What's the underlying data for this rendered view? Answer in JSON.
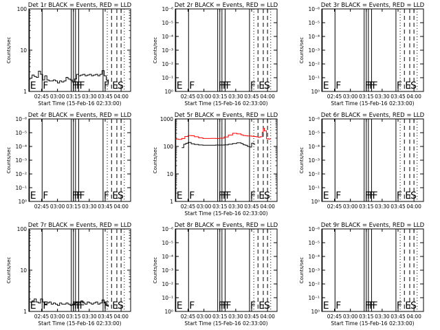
{
  "chart_data": [
    {
      "type": "line",
      "title": "Det 1r BLACK = Events, RED = LLD",
      "ylabel": "Counts/sec",
      "xlabel": "Start Time (15-Feb-16 02:33:00)",
      "log": true,
      "ylim": [
        1,
        100
      ],
      "yticks": [
        "1",
        "10",
        "100"
      ],
      "xticks": [
        "02:45",
        "03:00",
        "03:15",
        "03:30",
        "03:45",
        "04:00"
      ],
      "xlim_minutes": [
        0,
        96
      ],
      "tick_minutes": [
        12,
        27,
        42,
        57,
        72,
        87
      ],
      "events_solid": [
        {
          "label": "E",
          "x": 0.5
        },
        {
          "label": "F",
          "x": 12.5
        },
        {
          "label": "F",
          "x": 40
        },
        {
          "label": "F",
          "x": 42
        },
        {
          "label": "F",
          "x": 44
        },
        {
          "label": "F",
          "x": 47
        },
        {
          "label": "F",
          "x": 70
        }
      ],
      "events_dashed": [
        {
          "label": "E",
          "x": 78
        },
        {
          "label": "S",
          "x": 83
        },
        {
          "label": "",
          "x": 87
        }
      ],
      "events_dotted": [
        {
          "label": "",
          "x": 74
        },
        {
          "label": "",
          "x": 90
        }
      ],
      "series": [
        {
          "color": "#000000",
          "x": [
            1,
            3,
            5,
            7,
            9,
            11,
            13,
            15,
            17,
            19,
            21,
            23,
            25,
            27,
            29,
            31,
            33,
            35,
            37,
            39,
            41,
            43,
            45,
            47,
            49,
            51,
            53,
            55,
            57,
            59,
            61,
            63,
            65,
            67,
            69,
            71,
            73,
            75
          ],
          "values": [
            2.1,
            2.5,
            2.3,
            2.2,
            3.1,
            2.6,
            1.9,
            2.4,
            1.9,
            1.8,
            1.8,
            1.9,
            1.8,
            1.6,
            1.8,
            1.7,
            1.8,
            2.2,
            2.0,
            1.9,
            1.7,
            2.0,
            2.6,
            2.4,
            2.5,
            2.6,
            2.4,
            2.5,
            2.6,
            2.4,
            2.5,
            2.6,
            2.4,
            2.6,
            3.2,
            2.4,
            1.9,
            1.5
          ]
        }
      ]
    },
    {
      "type": "line",
      "title": "Det 2r BLACK = Events, RED = LLD",
      "ylabel": "Counts/sec",
      "xlabel": "Start Time (15-Feb-16 02:33:00)",
      "log": true,
      "ylim": [
        1,
        1e-06
      ],
      "yticks": [
        "10⁰",
        "10⁻¹",
        "10⁻²",
        "10⁻³",
        "10⁻⁴",
        "10⁻⁵",
        "10⁻⁶"
      ],
      "xticks": [
        "02:45",
        "03:00",
        "03:15",
        "03:30",
        "03:45",
        "04:00"
      ],
      "xlim_minutes": [
        0,
        96
      ],
      "tick_minutes": [
        12,
        27,
        42,
        57,
        72,
        87
      ],
      "events_solid": [
        {
          "label": "E",
          "x": 0.5
        },
        {
          "label": "F",
          "x": 12.5
        },
        {
          "label": "F",
          "x": 40
        },
        {
          "label": "F",
          "x": 42
        },
        {
          "label": "F",
          "x": 44
        },
        {
          "label": "F",
          "x": 47
        },
        {
          "label": "F",
          "x": 70
        }
      ],
      "events_dashed": [
        {
          "label": "E",
          "x": 78
        },
        {
          "label": "S",
          "x": 83
        },
        {
          "label": "",
          "x": 87
        }
      ],
      "events_dotted": [
        {
          "label": "",
          "x": 74
        },
        {
          "label": "",
          "x": 90
        }
      ],
      "series": []
    },
    {
      "type": "line",
      "title": "Det 3r BLACK = Events, RED = LLD",
      "ylabel": "Counts/sec",
      "xlabel": "Start Time (15-Feb-16 02:33:00)",
      "log": true,
      "ylim": [
        1,
        1e-06
      ],
      "yticks": [
        "10⁰",
        "10⁻¹",
        "10⁻²",
        "10⁻³",
        "10⁻⁴",
        "10⁻⁵",
        "10⁻⁶"
      ],
      "xticks": [
        "02:45",
        "03:00",
        "03:15",
        "03:30",
        "03:45",
        "04:00"
      ],
      "xlim_minutes": [
        0,
        96
      ],
      "tick_minutes": [
        12,
        27,
        42,
        57,
        72,
        87
      ],
      "events_solid": [
        {
          "label": "E",
          "x": 0.5
        },
        {
          "label": "F",
          "x": 12.5
        },
        {
          "label": "F",
          "x": 40
        },
        {
          "label": "F",
          "x": 42
        },
        {
          "label": "F",
          "x": 44
        },
        {
          "label": "F",
          "x": 47
        },
        {
          "label": "F",
          "x": 70
        }
      ],
      "events_dashed": [
        {
          "label": "E",
          "x": 78
        },
        {
          "label": "S",
          "x": 83
        },
        {
          "label": "",
          "x": 87
        }
      ],
      "events_dotted": [
        {
          "label": "",
          "x": 74
        },
        {
          "label": "",
          "x": 90
        }
      ],
      "series": []
    },
    {
      "type": "line",
      "title": "Det 4r BLACK = Events, RED = LLD",
      "ylabel": "Counts/sec",
      "xlabel": "",
      "log": true,
      "ylim": [
        1,
        1e-06
      ],
      "yticks": [
        "10⁰",
        "10⁻¹",
        "10⁻²",
        "10⁻³",
        "10⁻⁴",
        "10⁻⁵",
        "10⁻⁶"
      ],
      "xticks": [
        "02:45",
        "03:00",
        "03:15",
        "03:30",
        "03:45",
        "04:00"
      ],
      "xlim_minutes": [
        0,
        96
      ],
      "tick_minutes": [
        12,
        27,
        42,
        57,
        72,
        87
      ],
      "events_solid": [
        {
          "label": "E",
          "x": 0.5
        },
        {
          "label": "F",
          "x": 12.5
        },
        {
          "label": "F",
          "x": 40
        },
        {
          "label": "F",
          "x": 42
        },
        {
          "label": "F",
          "x": 44
        },
        {
          "label": "F",
          "x": 47
        },
        {
          "label": "F",
          "x": 70
        }
      ],
      "events_dashed": [
        {
          "label": "E",
          "x": 78
        },
        {
          "label": "S",
          "x": 83
        },
        {
          "label": "",
          "x": 87
        }
      ],
      "events_dotted": [
        {
          "label": "",
          "x": 74
        },
        {
          "label": "",
          "x": 90
        }
      ],
      "series": []
    },
    {
      "type": "line",
      "title": "Det 5r BLACK = Events, RED = LLD",
      "ylabel": "Counts/sec",
      "xlabel": "Start Time (15-Feb-16 02:33:00)",
      "log": true,
      "ylim": [
        1,
        1000
      ],
      "yticks": [
        "1",
        "10",
        "100",
        "1000"
      ],
      "xticks": [
        "02:45",
        "03:00",
        "03:15",
        "03:30",
        "03:45",
        "04:00"
      ],
      "xlim_minutes": [
        0,
        96
      ],
      "tick_minutes": [
        12,
        27,
        42,
        57,
        72,
        87
      ],
      "events_solid": [
        {
          "label": "E",
          "x": 0.5
        },
        {
          "label": "F",
          "x": 12.5
        },
        {
          "label": "F",
          "x": 40
        },
        {
          "label": "F",
          "x": 42
        },
        {
          "label": "F",
          "x": 44
        },
        {
          "label": "F",
          "x": 47
        },
        {
          "label": "F",
          "x": 70
        }
      ],
      "events_dashed": [
        {
          "label": "E",
          "x": 78
        },
        {
          "label": "S",
          "x": 83
        },
        {
          "label": "",
          "x": 87
        }
      ],
      "events_dotted": [
        {
          "label": "",
          "x": 74
        },
        {
          "label": "",
          "x": 90
        }
      ],
      "series": [
        {
          "color": "#000000",
          "x": [
            6,
            8,
            10,
            12,
            15,
            18,
            22,
            26,
            30,
            34,
            38,
            42,
            46,
            50,
            54,
            58,
            62,
            64,
            66,
            68,
            70,
            72,
            74,
            75
          ],
          "values": [
            90,
            120,
            130,
            140,
            125,
            118,
            113,
            110,
            110,
            110,
            112,
            112,
            114,
            120,
            128,
            136,
            128,
            115,
            110,
            100,
            95,
            132,
            120,
            125
          ]
        },
        {
          "color": "#ff0000",
          "x": [
            0,
            3,
            6,
            9,
            12,
            15,
            18,
            22,
            26,
            30,
            34,
            38,
            42,
            46,
            50,
            54,
            58,
            62,
            64,
            66,
            68,
            70,
            72,
            74,
            76,
            78,
            80,
            82,
            83,
            84,
            86,
            88,
            90
          ],
          "values": [
            185,
            180,
            195,
            230,
            250,
            245,
            225,
            205,
            195,
            195,
            196,
            195,
            200,
            220,
            260,
            300,
            285,
            265,
            250,
            245,
            240,
            240,
            235,
            230,
            225,
            215,
            225,
            330,
            460,
            370,
            190,
            185,
            185
          ]
        }
      ]
    },
    {
      "type": "line",
      "title": "Det 6r BLACK = Events, RED = LLD",
      "ylabel": "Counts/sec",
      "xlabel": "",
      "log": true,
      "ylim": [
        1,
        1e-06
      ],
      "yticks": [
        "10⁰",
        "10⁻¹",
        "10⁻²",
        "10⁻³",
        "10⁻⁴",
        "10⁻⁵",
        "10⁻⁶"
      ],
      "xticks": [
        "02:45",
        "03:00",
        "03:15",
        "03:30",
        "03:45",
        "04:00"
      ],
      "xlim_minutes": [
        0,
        96
      ],
      "tick_minutes": [
        12,
        27,
        42,
        57,
        72,
        87
      ],
      "events_solid": [
        {
          "label": "E",
          "x": 0.5
        },
        {
          "label": "F",
          "x": 12.5
        },
        {
          "label": "F",
          "x": 40
        },
        {
          "label": "F",
          "x": 42
        },
        {
          "label": "F",
          "x": 44
        },
        {
          "label": "F",
          "x": 47
        },
        {
          "label": "F",
          "x": 70
        }
      ],
      "events_dashed": [
        {
          "label": "E",
          "x": 78
        },
        {
          "label": "S",
          "x": 83
        },
        {
          "label": "",
          "x": 87
        }
      ],
      "events_dotted": [
        {
          "label": "",
          "x": 74
        },
        {
          "label": "",
          "x": 90
        }
      ],
      "series": []
    },
    {
      "type": "line",
      "title": "Det 7r BLACK = Events, RED = LLD",
      "ylabel": "Counts/sec",
      "xlabel": "Start Time (15-Feb-16 02:33:00)",
      "log": true,
      "ylim": [
        1,
        100
      ],
      "yticks": [
        "1",
        "10",
        "100"
      ],
      "xticks": [
        "02:45",
        "03:00",
        "03:15",
        "03:30",
        "03:45",
        "04:00"
      ],
      "xlim_minutes": [
        0,
        96
      ],
      "tick_minutes": [
        12,
        27,
        42,
        57,
        72,
        87
      ],
      "events_solid": [
        {
          "label": "E",
          "x": 0.5
        },
        {
          "label": "F",
          "x": 12.5
        },
        {
          "label": "F",
          "x": 40
        },
        {
          "label": "F",
          "x": 42
        },
        {
          "label": "F",
          "x": 44
        },
        {
          "label": "F",
          "x": 47
        },
        {
          "label": "F",
          "x": 70
        }
      ],
      "events_dashed": [
        {
          "label": "E",
          "x": 78
        },
        {
          "label": "S",
          "x": 83
        },
        {
          "label": "",
          "x": 87
        }
      ],
      "events_dotted": [
        {
          "label": "",
          "x": 74
        },
        {
          "label": "",
          "x": 90
        }
      ],
      "series": [
        {
          "color": "#000000",
          "x": [
            1,
            3,
            5,
            7,
            9,
            11,
            13,
            15,
            17,
            19,
            21,
            23,
            25,
            27,
            29,
            31,
            33,
            35,
            37,
            39,
            41,
            43,
            45,
            47,
            49,
            51,
            53,
            55,
            57,
            59,
            61,
            63,
            65,
            67,
            69,
            71,
            73,
            75
          ],
          "values": [
            1.7,
            1.8,
            2.0,
            1.7,
            1.6,
            2.0,
            1.7,
            1.5,
            1.6,
            1.7,
            1.5,
            1.6,
            1.5,
            1.4,
            1.6,
            1.5,
            1.5,
            1.6,
            1.5,
            1.4,
            1.5,
            1.6,
            1.7,
            1.6,
            1.8,
            1.6,
            1.5,
            1.7,
            1.6,
            1.5,
            1.6,
            1.7,
            1.5,
            1.6,
            1.9,
            1.6,
            1.4,
            1.3
          ]
        }
      ]
    },
    {
      "type": "line",
      "title": "Det 8r BLACK = Events, RED = LLD",
      "ylabel": "Counts/sec",
      "xlabel": "Start Time (15-Feb-16 02:33:00)",
      "log": true,
      "ylim": [
        1,
        1e-06
      ],
      "yticks": [
        "10⁰",
        "10⁻¹",
        "10⁻²",
        "10⁻³",
        "10⁻⁴",
        "10⁻⁵",
        "10⁻⁶"
      ],
      "xticks": [
        "02:45",
        "03:00",
        "03:15",
        "03:30",
        "03:45",
        "04:00"
      ],
      "xlim_minutes": [
        0,
        96
      ],
      "tick_minutes": [
        12,
        27,
        42,
        57,
        72,
        87
      ],
      "events_solid": [
        {
          "label": "E",
          "x": 0.5
        },
        {
          "label": "F",
          "x": 12.5
        },
        {
          "label": "F",
          "x": 40
        },
        {
          "label": "F",
          "x": 42
        },
        {
          "label": "F",
          "x": 44
        },
        {
          "label": "F",
          "x": 47
        },
        {
          "label": "F",
          "x": 70
        }
      ],
      "events_dashed": [
        {
          "label": "E",
          "x": 78
        },
        {
          "label": "S",
          "x": 83
        },
        {
          "label": "",
          "x": 87
        }
      ],
      "events_dotted": [
        {
          "label": "",
          "x": 74
        },
        {
          "label": "",
          "x": 90
        }
      ],
      "series": []
    },
    {
      "type": "line",
      "title": "Det 9r BLACK = Events, RED = LLD",
      "ylabel": "Counts/sec",
      "xlabel": "Start Time (15-Feb-16 02:33:00)",
      "log": true,
      "ylim": [
        1,
        1e-06
      ],
      "yticks": [
        "10⁰",
        "10⁻¹",
        "10⁻²",
        "10⁻³",
        "10⁻⁴",
        "10⁻⁵",
        "10⁻⁶"
      ],
      "xticks": [
        "02:45",
        "03:00",
        "03:15",
        "03:30",
        "03:45",
        "04:00"
      ],
      "xlim_minutes": [
        0,
        96
      ],
      "tick_minutes": [
        12,
        27,
        42,
        57,
        72,
        87
      ],
      "events_solid": [
        {
          "label": "E",
          "x": 0.5
        },
        {
          "label": "F",
          "x": 12.5
        },
        {
          "label": "F",
          "x": 40
        },
        {
          "label": "F",
          "x": 42
        },
        {
          "label": "F",
          "x": 44
        },
        {
          "label": "F",
          "x": 47
        },
        {
          "label": "F",
          "x": 70
        }
      ],
      "events_dashed": [
        {
          "label": "E",
          "x": 78
        },
        {
          "label": "S",
          "x": 83
        },
        {
          "label": "",
          "x": 87
        }
      ],
      "events_dotted": [
        {
          "label": "",
          "x": 74
        },
        {
          "label": "",
          "x": 90
        }
      ],
      "series": []
    }
  ]
}
